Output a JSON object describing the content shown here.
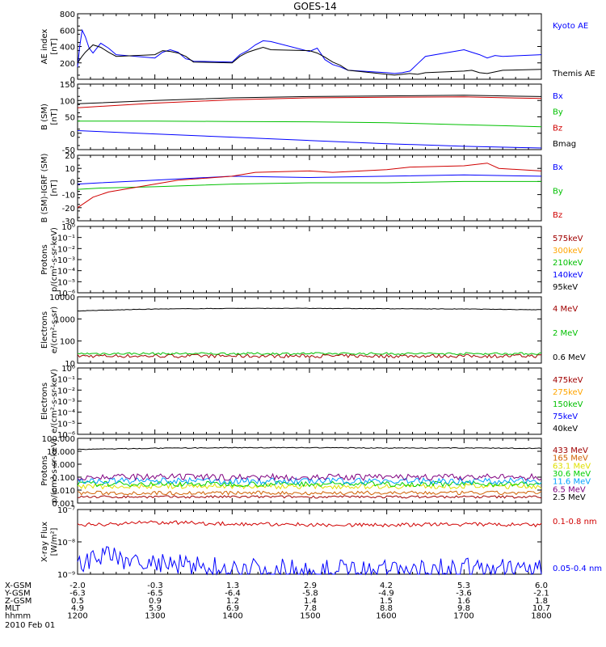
{
  "title": "GOES-14",
  "date_label": "2010 Feb 01",
  "footer_rows": [
    {
      "label": "X-GSM",
      "values": [
        "-2.0",
        "-0.3",
        "1.3",
        "2.9",
        "4.2",
        "5.3",
        "6.0"
      ]
    },
    {
      "label": "Y-GSM",
      "values": [
        "-6.3",
        "-6.5",
        "-6.4",
        "-5.8",
        "-4.9",
        "-3.6",
        "-2.1"
      ]
    },
    {
      "label": "Z-GSM",
      "values": [
        "0.5",
        "0.9",
        "1.2",
        "1.4",
        "1.5",
        "1.6",
        "1.8"
      ]
    },
    {
      "label": "MLT",
      "values": [
        "4.9",
        "5.9",
        "6.9",
        "7.8",
        "8.8",
        "9.8",
        "10.7"
      ]
    },
    {
      "label": "hhmm",
      "values": [
        "1200",
        "1300",
        "1400",
        "1500",
        "1600",
        "1700",
        "1800"
      ]
    }
  ],
  "chart_data": [
    {
      "type": "line",
      "title": "GOES-14",
      "ylabel": [
        "AE index",
        "[nT]"
      ],
      "scale": "linear",
      "ylim": [
        0,
        800
      ],
      "yticks": [
        "0",
        "200",
        "400",
        "600",
        "800"
      ],
      "xlim": [
        1200,
        1800
      ],
      "series": [
        {
          "name": "Kyoto AE",
          "color": "#0000ff",
          "x": [
            1200,
            1203,
            1206,
            1210,
            1215,
            1220,
            1230,
            1240,
            1250,
            1300,
            1310,
            1320,
            1330,
            1340,
            1345,
            1350,
            1400,
            1410,
            1420,
            1430,
            1440,
            1450,
            1500,
            1510,
            1520,
            1530,
            1540,
            1550,
            1600,
            1610,
            1620,
            1630,
            1640,
            1650,
            1700,
            1710,
            1720,
            1730,
            1740,
            1750,
            1800
          ],
          "y": [
            150,
            420,
            600,
            520,
            380,
            320,
            440,
            380,
            300,
            260,
            330,
            360,
            330,
            250,
            240,
            220,
            210,
            300,
            350,
            420,
            470,
            460,
            340,
            380,
            240,
            180,
            150,
            110,
            80,
            70,
            80,
            100,
            190,
            280,
            360,
            330,
            300,
            260,
            290,
            280,
            300
          ]
        },
        {
          "name": "Themis AE",
          "color": "#000000",
          "x": [
            1200,
            1205,
            1210,
            1220,
            1230,
            1240,
            1250,
            1300,
            1310,
            1320,
            1330,
            1340,
            1350,
            1400,
            1410,
            1420,
            1430,
            1440,
            1450,
            1500,
            1510,
            1520,
            1530,
            1540,
            1550,
            1600,
            1610,
            1620,
            1630,
            1640,
            1650,
            1700,
            1710,
            1720,
            1730,
            1740,
            1750,
            1800
          ],
          "y": [
            200,
            270,
            330,
            420,
            390,
            330,
            280,
            300,
            350,
            340,
            320,
            280,
            210,
            200,
            280,
            330,
            360,
            390,
            360,
            350,
            320,
            270,
            210,
            170,
            110,
            60,
            50,
            60,
            70,
            60,
            80,
            100,
            110,
            80,
            70,
            90,
            110,
            120
          ]
        }
      ]
    },
    {
      "type": "line",
      "ylabel": [
        "B (SM)",
        "[nT]"
      ],
      "scale": "linear",
      "ylim": [
        -50,
        150
      ],
      "yticks": [
        "-50",
        "0",
        "50",
        "100",
        "150"
      ],
      "xlim": [
        1200,
        1800
      ],
      "series": [
        {
          "name": "Bx",
          "color": "#0000ff",
          "x": [
            1200,
            1300,
            1400,
            1500,
            1600,
            1700,
            1800
          ],
          "y": [
            8,
            -2,
            -12,
            -22,
            -32,
            -40,
            -45
          ]
        },
        {
          "name": "By",
          "color": "#00c000",
          "x": [
            1200,
            1300,
            1400,
            1500,
            1600,
            1700,
            1800
          ],
          "y": [
            37,
            37,
            36,
            35,
            32,
            26,
            20
          ]
        },
        {
          "name": "Bz",
          "color": "#d00000",
          "x": [
            1200,
            1300,
            1400,
            1500,
            1600,
            1700,
            1800
          ],
          "y": [
            78,
            92,
            102,
            108,
            110,
            111,
            106
          ]
        },
        {
          "name": "Bmag",
          "color": "#000000",
          "x": [
            1200,
            1300,
            1400,
            1500,
            1600,
            1700,
            1800
          ],
          "y": [
            90,
            100,
            108,
            112,
            114,
            116,
            112
          ]
        }
      ]
    },
    {
      "type": "line",
      "ylabel": [
        "B (SM)-IGRF (SM)",
        "[nT]"
      ],
      "scale": "linear",
      "ylim": [
        -30,
        20
      ],
      "yticks": [
        "-30",
        "-20",
        "-10",
        "0",
        "10",
        "20"
      ],
      "xlim": [
        1200,
        1800
      ],
      "series": [
        {
          "name": "Bx",
          "color": "#0000ff",
          "x": [
            1200,
            1230,
            1300,
            1400,
            1500,
            1600,
            1700,
            1800
          ],
          "y": [
            -2,
            -1,
            1,
            4,
            3,
            4,
            5,
            4
          ]
        },
        {
          "name": "By",
          "color": "#00c000",
          "x": [
            1200,
            1230,
            1300,
            1400,
            1500,
            1600,
            1700,
            1800
          ],
          "y": [
            -6,
            -5,
            -4,
            -2,
            -1,
            -1,
            0,
            0
          ]
        },
        {
          "name": "Bz",
          "color": "#d00000",
          "x": [
            1200,
            1210,
            1220,
            1240,
            1300,
            1330,
            1400,
            1430,
            1500,
            1530,
            1600,
            1630,
            1700,
            1730,
            1745,
            1800
          ],
          "y": [
            -20,
            -16,
            -12,
            -8,
            -2,
            1,
            4,
            7,
            8,
            7,
            9,
            11,
            12,
            14,
            10,
            8
          ]
        }
      ]
    },
    {
      "type": "line",
      "ylabel": [
        "Protons",
        "p/(cm²-s-sr-keV)"
      ],
      "scale": "log",
      "ylim": [
        1e-06,
        1
      ],
      "yticks": [
        "10⁻⁶",
        "10⁻⁵",
        "10⁻⁴",
        "10⁻³",
        "10⁻²",
        "10⁻¹",
        "10⁰"
      ],
      "xlim": [
        1200,
        1800
      ],
      "series": [
        {
          "name": "575keV",
          "color": "#a00000",
          "x": [],
          "y": []
        },
        {
          "name": "300keV",
          "color": "#ffa500",
          "x": [],
          "y": []
        },
        {
          "name": "210keV",
          "color": "#00c000",
          "x": [],
          "y": []
        },
        {
          "name": "140keV",
          "color": "#0000ff",
          "x": [],
          "y": []
        },
        {
          "name": "95keV",
          "color": "#000000",
          "x": [],
          "y": []
        }
      ]
    },
    {
      "type": "line",
      "ylabel": [
        "Electrons",
        "e/(cm²-s-sr)"
      ],
      "scale": "log",
      "ylim": [
        10,
        10000
      ],
      "yticks": [
        "10",
        "100",
        "1000",
        "10000"
      ],
      "xlim": [
        1200,
        1800
      ],
      "series": [
        {
          "name": "4 MeV",
          "color": "#a00000",
          "x": [
            1200,
            1800
          ],
          "y": [
            21,
            21
          ],
          "noise": 0.08
        },
        {
          "name": "2 MeV",
          "color": "#00c000",
          "x": [
            1200,
            1800
          ],
          "y": [
            27,
            27
          ],
          "noise": 0.05
        },
        {
          "name": "0.6 MeV",
          "color": "#000000",
          "x": [
            1200,
            1300,
            1400,
            1500,
            1600,
            1700,
            1800
          ],
          "y": [
            2300,
            2800,
            3000,
            3000,
            2900,
            2800,
            2600
          ],
          "noise": 0.01
        }
      ]
    },
    {
      "type": "line",
      "ylabel": [
        "Electrons",
        "e/(cm²-s-sr-keV)"
      ],
      "scale": "log",
      "ylim": [
        1e-06,
        1
      ],
      "yticks": [
        "10⁻⁶",
        "10⁻⁵",
        "10⁻⁴",
        "10⁻³",
        "10⁻²",
        "10⁻¹",
        "10⁰"
      ],
      "xlim": [
        1200,
        1800
      ],
      "series": [
        {
          "name": "475keV",
          "color": "#a00000",
          "x": [],
          "y": []
        },
        {
          "name": "275keV",
          "color": "#ffa500",
          "x": [],
          "y": []
        },
        {
          "name": "150keV",
          "color": "#00c000",
          "x": [],
          "y": []
        },
        {
          "name": "75keV",
          "color": "#0000ff",
          "x": [],
          "y": []
        },
        {
          "name": "40keV",
          "color": "#000000",
          "x": [],
          "y": []
        }
      ]
    },
    {
      "type": "line",
      "ylabel": [
        "Protons",
        "p/(cm²-s-sr-keV)"
      ],
      "scale": "log",
      "ylim": [
        0.001,
        100
      ],
      "yticks": [
        "0.001",
        "0.010",
        "0.100",
        "1.000",
        "10.000",
        "100.000"
      ],
      "xlim": [
        1200,
        1800
      ],
      "series": [
        {
          "name": "433 MeV",
          "color": "#a00000",
          "x": [
            1200,
            1800
          ],
          "y": [
            0.003,
            0.003
          ],
          "noise": 0.1
        },
        {
          "name": "165 MeV",
          "color": "#d06000",
          "x": [
            1200,
            1800
          ],
          "y": [
            0.006,
            0.006
          ],
          "noise": 0.15
        },
        {
          "name": "63.1 MeV",
          "color": "#e0e000",
          "x": [
            1200,
            1800
          ],
          "y": [
            0.02,
            0.02
          ],
          "noise": 0.2
        },
        {
          "name": "30.6 MeV",
          "color": "#00d000",
          "x": [
            1200,
            1800
          ],
          "y": [
            0.03,
            0.03
          ],
          "noise": 0.2
        },
        {
          "name": "11.6 MeV",
          "color": "#00a0ff",
          "x": [
            1200,
            1800
          ],
          "y": [
            0.05,
            0.05
          ],
          "noise": 0.25
        },
        {
          "name": "6.5 MeV",
          "color": "#800080",
          "x": [
            1200,
            1800
          ],
          "y": [
            0.1,
            0.1
          ],
          "noise": 0.25
        },
        {
          "name": "2.5 MeV",
          "color": "#000000",
          "x": [
            1200,
            1300,
            1400,
            1500,
            1600,
            1700,
            1800
          ],
          "y": [
            14,
            17,
            19,
            19,
            18,
            18,
            17
          ],
          "noise": 0.03
        }
      ]
    },
    {
      "type": "line",
      "ylabel": [
        "X-ray Flux",
        "[W/m²]"
      ],
      "scale": "log",
      "ylim": [
        1e-09,
        1e-07
      ],
      "yticks": [
        "10⁻⁹",
        "10⁻⁸",
        "10⁻⁷"
      ],
      "xlim": [
        1200,
        1800
      ],
      "series": [
        {
          "name": "0.1-0.8 nm",
          "color": "#d00000",
          "x": [
            1200,
            1300,
            1400,
            1500,
            1600,
            1700,
            1800
          ],
          "y": [
            3.3e-08,
            4e-08,
            3.6e-08,
            3.4e-08,
            3.3e-08,
            3.5e-08,
            3.3e-08
          ],
          "noise": 0.06
        },
        {
          "name": "0.05-0.4 nm",
          "color": "#0000ff",
          "x": [
            1200,
            1230,
            1300,
            1400,
            1500,
            1600,
            1700,
            1800
          ],
          "y": [
            1.8e-09,
            3.5e-09,
            2e-09,
            1.5e-09,
            1.3e-09,
            1.3e-09,
            1.4e-09,
            1.4e-09
          ],
          "noise": 0.35
        }
      ]
    }
  ]
}
